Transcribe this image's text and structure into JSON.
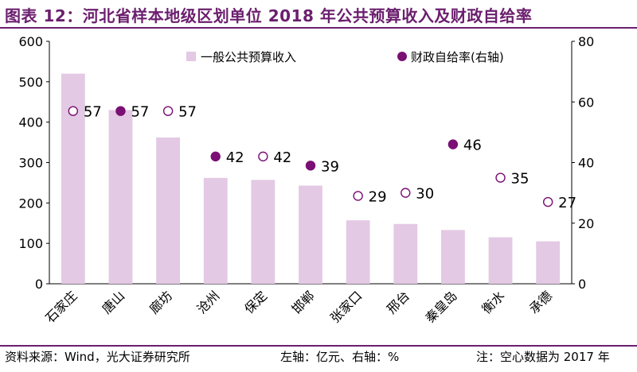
{
  "title": "图表 12：河北省样本地级区划单位 2018 年公共预算收入及财政自给率",
  "footer": {
    "source": "资料来源：Wind，光大证券研究所",
    "axes_note": "左轴：亿元、右轴：%",
    "note": "注：空心数据为 2017 年"
  },
  "colors": {
    "accent": "#6b1f6e",
    "bar": "#e3c9e3",
    "marker": "#7a0f74"
  },
  "chart_data": {
    "type": "bar",
    "categories": [
      "石家庄",
      "唐山",
      "廊坊",
      "沧州",
      "保定",
      "邯郸",
      "张家口",
      "邢台",
      "秦皇岛",
      "衡水",
      "承德"
    ],
    "series": [
      {
        "name": "一般公共预算收入",
        "axis": "left",
        "type": "bar",
        "values": [
          520,
          430,
          362,
          262,
          257,
          243,
          157,
          148,
          133,
          115,
          105
        ]
      },
      {
        "name": "财政自给率(右轴)",
        "axis": "right",
        "type": "scatter",
        "values": [
          57,
          57,
          57,
          42,
          42,
          39,
          29,
          30,
          46,
          35,
          27
        ],
        "hollow": [
          true,
          false,
          true,
          false,
          true,
          false,
          true,
          true,
          false,
          true,
          true
        ],
        "labels": [
          "57",
          "57",
          "57",
          "42",
          "42",
          "39",
          "29",
          "30",
          "46",
          "35",
          "27"
        ]
      }
    ],
    "left_axis": {
      "min": 0,
      "max": 600,
      "ticks": [
        0,
        100,
        200,
        300,
        400,
        500,
        600
      ]
    },
    "right_axis": {
      "min": 0,
      "max": 80,
      "ticks": [
        0,
        20,
        40,
        60,
        80
      ]
    },
    "legend": {
      "placement": "top-center"
    }
  }
}
